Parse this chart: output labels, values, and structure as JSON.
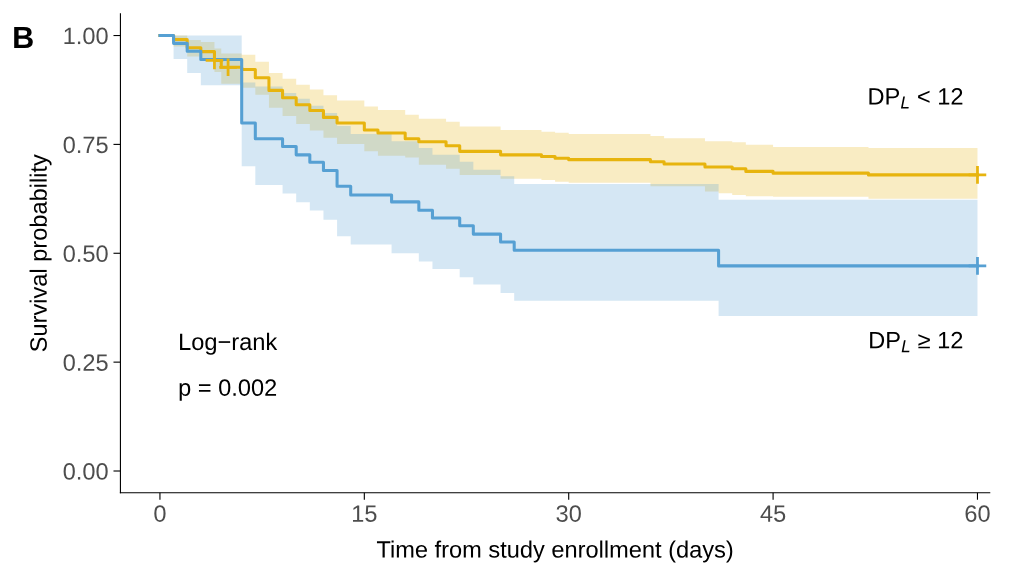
{
  "chart_data": {
    "type": "step",
    "xlabel": "Time from study enrollment (days)",
    "ylabel": "Survival probability",
    "xlim": [
      -2.9,
      60.9
    ],
    "ylim": [
      -0.05,
      1.05
    ],
    "xticks": [
      0,
      15,
      30,
      45,
      60
    ],
    "yticks": [
      {
        "value": 0,
        "label": "0.00"
      },
      {
        "value": 0.25,
        "label": "0.25"
      },
      {
        "value": 0.5,
        "label": "0.50"
      },
      {
        "value": 0.75,
        "label": "0.75"
      },
      {
        "value": 1,
        "label": "1.00"
      }
    ],
    "grid": false,
    "legend": false,
    "line_style": "solid",
    "annotations": [
      "B",
      "Log−rank",
      "p = 0.002"
    ],
    "series": [
      {
        "name": "DP$_{L}$ < 12",
        "color": "#e7b40e",
        "x": [
          0,
          1,
          2,
          3,
          4,
          4.5,
          6,
          7,
          8,
          9,
          10,
          11,
          12,
          13,
          15,
          16,
          18,
          19,
          21,
          22,
          25,
          28,
          29,
          30,
          36,
          37,
          40,
          41,
          42,
          43,
          45,
          52,
          60
        ],
        "values": [
          1,
          0.991,
          0.972,
          0.963,
          0.943,
          0.927,
          0.922,
          0.903,
          0.874,
          0.857,
          0.841,
          0.828,
          0.812,
          0.799,
          0.783,
          0.776,
          0.763,
          0.756,
          0.747,
          0.734,
          0.726,
          0.722,
          0.718,
          0.715,
          0.71,
          0.705,
          0.698,
          0.698,
          0.694,
          0.688,
          0.684,
          0.68,
          0.68
        ],
        "upper": [
          1,
          1,
          0.99,
          0.985,
          0.97,
          0.959,
          0.956,
          0.94,
          0.914,
          0.901,
          0.887,
          0.876,
          0.863,
          0.851,
          0.837,
          0.829,
          0.818,
          0.809,
          0.802,
          0.791,
          0.783,
          0.779,
          0.777,
          0.774,
          0.769,
          0.764,
          0.757,
          0.757,
          0.755,
          0.749,
          0.744,
          0.742,
          0.742
        ],
        "lower": [
          1,
          0.975,
          0.952,
          0.945,
          0.916,
          0.889,
          0.88,
          0.864,
          0.834,
          0.815,
          0.797,
          0.782,
          0.765,
          0.751,
          0.734,
          0.724,
          0.72,
          0.703,
          0.694,
          0.68,
          0.671,
          0.668,
          0.664,
          0.662,
          0.654,
          0.654,
          0.642,
          0.638,
          0.634,
          0.631,
          0.63,
          0.625,
          0.625
        ]
      },
      {
        "name": "DP$_{L}$ ≥ 12",
        "color": "#56a0d3",
        "x": [
          0,
          1,
          2,
          3,
          6,
          7,
          9,
          10,
          11,
          12,
          13,
          14,
          17,
          19,
          20,
          22,
          23,
          25,
          26,
          41,
          60
        ],
        "values": [
          1,
          0.982,
          0.964,
          0.945,
          0.799,
          0.763,
          0.745,
          0.726,
          0.709,
          0.69,
          0.654,
          0.634,
          0.618,
          0.599,
          0.581,
          0.563,
          0.544,
          0.526,
          0.507,
          0.471,
          0.471
        ],
        "upper": [
          1,
          1,
          1,
          1,
          0.892,
          0.883,
          0.868,
          0.855,
          0.839,
          0.822,
          0.792,
          0.774,
          0.757,
          0.742,
          0.726,
          0.71,
          0.692,
          0.677,
          0.659,
          0.623,
          0.623
        ],
        "lower": [
          1,
          0.946,
          0.914,
          0.886,
          0.7,
          0.657,
          0.637,
          0.617,
          0.598,
          0.577,
          0.539,
          0.52,
          0.5,
          0.481,
          0.464,
          0.445,
          0.428,
          0.409,
          0.391,
          0.356,
          0.356
        ]
      },
      {
        "type": "scatter",
        "marker": "cross",
        "color": "#e7b40e",
        "x": [
          4,
          5,
          60
        ],
        "values": [
          0.943,
          0.927,
          0.68
        ]
      },
      {
        "type": "scatter",
        "marker": "cross",
        "color": "#56a0d3",
        "x": [
          60
        ],
        "values": [
          0.471
        ]
      }
    ]
  }
}
